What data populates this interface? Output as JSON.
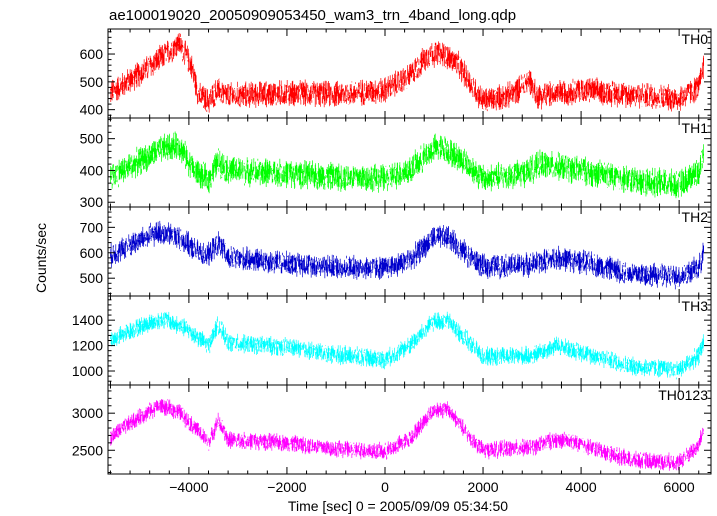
{
  "chart_data": {
    "type": "line",
    "title": "ae100019020_20050909053450_wam3_trn_4band_long.qdp",
    "xlabel": "Time [sec] 0 = 2005/09/09 05:34:50",
    "ylabel": "Counts/sec",
    "xlim": [
      -5650,
      6650
    ],
    "x_ticks": [
      -4000,
      -2000,
      0,
      2000,
      4000,
      6000
    ],
    "x_tick_labels": [
      "−4000",
      "−2000",
      "0",
      "2000",
      "4000",
      "6000"
    ],
    "grid": false,
    "panels": [
      {
        "name": "TH0",
        "color": "#ff0000",
        "ylim": [
          370,
          690
        ],
        "y_ticks": [
          400,
          500,
          600
        ],
        "y_tick_labels": [
          "400",
          "500",
          "600"
        ],
        "x": [
          -5600,
          -5000,
          -4600,
          -4200,
          -3950,
          -3800,
          -3600,
          -3420,
          -3200,
          -2000,
          -1000,
          0,
          500,
          900,
          1200,
          1500,
          2000,
          2600,
          2950,
          3100,
          4000,
          5000,
          6000,
          6400,
          6500
        ],
        "y": [
          460,
          530,
          580,
          640,
          560,
          450,
          430,
          470,
          450,
          460,
          455,
          470,
          520,
          600,
          600,
          560,
          430,
          455,
          510,
          450,
          470,
          455,
          440,
          480,
          560
        ],
        "noise": 45
      },
      {
        "name": "TH1",
        "color": "#00ff00",
        "ylim": [
          285,
          565
        ],
        "y_ticks": [
          300,
          400,
          500
        ],
        "y_tick_labels": [
          "300",
          "400",
          "500"
        ],
        "x": [
          -5600,
          -5000,
          -4500,
          -4200,
          -3900,
          -3600,
          -3400,
          -3200,
          -2000,
          -1000,
          0,
          500,
          1000,
          1200,
          1600,
          2000,
          2800,
          3200,
          4000,
          5000,
          6000,
          6400,
          6500
        ],
        "y": [
          380,
          430,
          470,
          480,
          400,
          370,
          430,
          400,
          390,
          380,
          375,
          400,
          470,
          470,
          430,
          375,
          390,
          420,
          400,
          370,
          355,
          400,
          450
        ],
        "noise": 42
      },
      {
        "name": "TH2",
        "color": "#0000cc",
        "ylim": [
          430,
          780
        ],
        "y_ticks": [
          500,
          600,
          700
        ],
        "y_tick_labels": [
          "500",
          "600",
          "700"
        ],
        "x": [
          -5600,
          -5000,
          -4600,
          -4200,
          -3800,
          -3600,
          -3400,
          -3200,
          -2000,
          -1000,
          0,
          500,
          1000,
          1300,
          1700,
          2000,
          3000,
          3500,
          4000,
          5000,
          6000,
          6400,
          6500
        ],
        "y": [
          590,
          650,
          680,
          660,
          600,
          590,
          640,
          580,
          560,
          545,
          540,
          570,
          660,
          660,
          590,
          545,
          555,
          580,
          565,
          520,
          505,
          540,
          600
        ],
        "noise": 45
      },
      {
        "name": "TH3",
        "color": "#00ffff",
        "ylim": [
          890,
          1590
        ],
        "y_ticks": [
          1000,
          1200,
          1400
        ],
        "y_tick_labels": [
          "1000",
          "1200",
          "1400"
        ],
        "x": [
          -5600,
          -5000,
          -4500,
          -4000,
          -3600,
          -3400,
          -3200,
          -2000,
          -1000,
          0,
          500,
          1000,
          1300,
          1700,
          2000,
          3000,
          3500,
          4000,
          5000,
          6000,
          6400,
          6500
        ],
        "y": [
          1240,
          1350,
          1410,
          1320,
          1200,
          1370,
          1220,
          1190,
          1130,
          1090,
          1200,
          1390,
          1390,
          1230,
          1110,
          1120,
          1200,
          1150,
          1040,
          1010,
          1120,
          1230
        ],
        "noise": 70
      },
      {
        "name": "TH0123",
        "color": "#ff00ff",
        "ylim": [
          2180,
          3380
        ],
        "y_ticks": [
          2500,
          3000
        ],
        "y_tick_labels": [
          "2500",
          "3000"
        ],
        "x": [
          -5600,
          -5000,
          -4600,
          -4200,
          -3800,
          -3600,
          -3400,
          -3200,
          -2000,
          -1000,
          0,
          500,
          1000,
          1300,
          1700,
          2000,
          3000,
          3500,
          4000,
          5000,
          6000,
          6400,
          6500
        ],
        "y": [
          2680,
          2950,
          3100,
          3020,
          2750,
          2600,
          2900,
          2640,
          2600,
          2520,
          2480,
          2650,
          3050,
          3050,
          2700,
          2500,
          2540,
          2650,
          2580,
          2370,
          2340,
          2560,
          2800
        ],
        "noise": 110
      }
    ]
  }
}
